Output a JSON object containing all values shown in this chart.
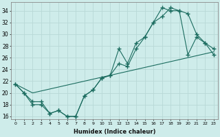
{
  "xlabel": "Humidex (Indice chaleur)",
  "xlim": [
    -0.5,
    23.5
  ],
  "ylim": [
    15.5,
    35.5
  ],
  "xticks": [
    0,
    1,
    2,
    3,
    4,
    5,
    6,
    7,
    8,
    9,
    10,
    11,
    12,
    13,
    14,
    15,
    16,
    17,
    18,
    19,
    20,
    21,
    22,
    23
  ],
  "yticks": [
    16,
    18,
    20,
    22,
    24,
    26,
    28,
    30,
    32,
    34
  ],
  "bg_color": "#ceecea",
  "line_color": "#1a6b5e",
  "grid_color": "#b8d8d6",
  "series1_x": [
    0,
    1,
    2,
    3,
    4,
    5,
    6,
    7,
    8,
    9,
    10,
    11,
    12,
    13,
    14,
    15,
    16,
    17,
    18,
    19,
    20,
    21,
    22,
    23
  ],
  "series1_y": [
    21.5,
    20.0,
    18.5,
    18.5,
    16.5,
    17.0,
    16.0,
    16.0,
    19.5,
    20.5,
    22.5,
    23.0,
    27.5,
    25.0,
    28.5,
    29.5,
    32.0,
    34.5,
    34.0,
    34.0,
    33.5,
    30.0,
    28.5,
    27.5
  ],
  "series2_x": [
    0,
    1,
    2,
    3,
    4,
    5,
    6,
    7,
    8,
    9,
    10,
    11,
    12,
    13,
    14,
    15,
    16,
    17,
    18,
    19,
    20,
    21,
    22,
    23
  ],
  "series2_y": [
    21.5,
    20.0,
    18.0,
    18.0,
    16.5,
    17.0,
    16.0,
    16.0,
    19.5,
    20.5,
    22.5,
    23.0,
    25.0,
    24.5,
    27.5,
    29.5,
    32.0,
    33.0,
    34.5,
    34.0,
    26.5,
    29.5,
    28.5,
    26.5
  ],
  "series3_x": [
    0,
    2,
    23
  ],
  "series3_y": [
    21.5,
    20.0,
    27.0
  ]
}
